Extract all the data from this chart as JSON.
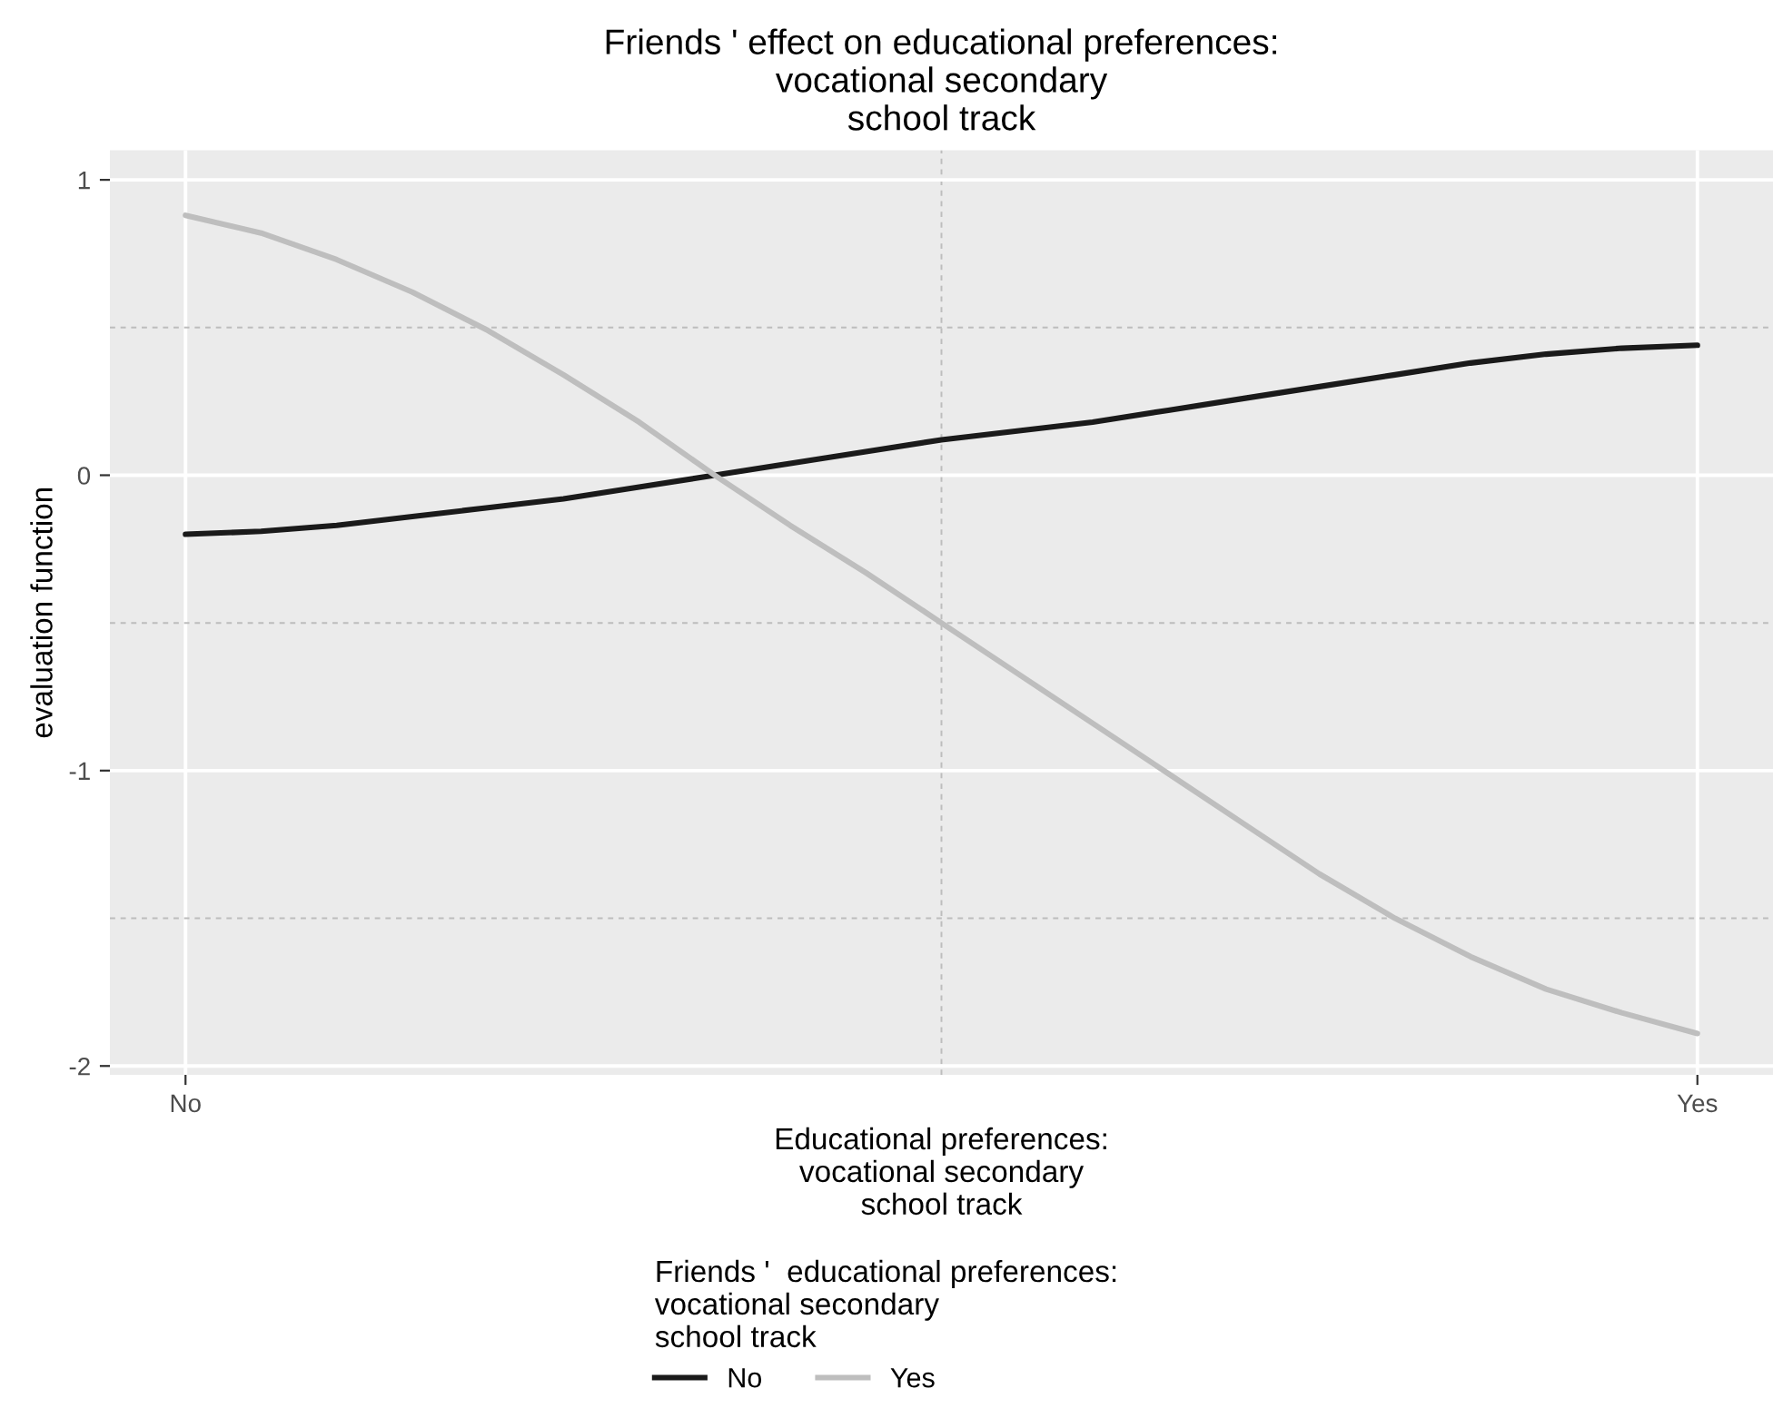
{
  "chart_data": {
    "type": "line",
    "title": "Friends ' effect on educational preferences:\nvocational secondary\nschool track",
    "xlabel": "Educational preferences:\nvocational secondary\nschool track",
    "ylabel": "evaluation function",
    "legend_title": "Friends '  educational preferences:\nvocational secondary\nschool track",
    "categories": [
      "No",
      null,
      null,
      null,
      null,
      null,
      null,
      null,
      null,
      null,
      null,
      null,
      null,
      null,
      null,
      null,
      null,
      null,
      null,
      null,
      "Yes"
    ],
    "series": [
      {
        "name": "No",
        "color": "#1a1a1a",
        "values": [
          -0.2,
          -0.19,
          -0.17,
          -0.14,
          -0.11,
          -0.08,
          -0.04,
          0.0,
          0.04,
          0.08,
          0.12,
          0.15,
          0.18,
          0.22,
          0.26,
          0.3,
          0.34,
          0.38,
          0.41,
          0.43,
          0.44
        ]
      },
      {
        "name": "Yes",
        "color": "#bebebe",
        "values": [
          0.88,
          0.82,
          0.73,
          0.62,
          0.49,
          0.34,
          0.18,
          0.0,
          -0.17,
          -0.33,
          -0.5,
          -0.67,
          -0.84,
          -1.01,
          -1.18,
          -1.35,
          -1.5,
          -1.63,
          -1.74,
          -1.82,
          -1.89
        ]
      }
    ],
    "ylim": [
      -2.03,
      1.1
    ],
    "yticks": [
      -2,
      -1,
      0,
      1
    ],
    "grid": true,
    "legend": "bottom",
    "marker": "none",
    "line_style": "solid"
  }
}
